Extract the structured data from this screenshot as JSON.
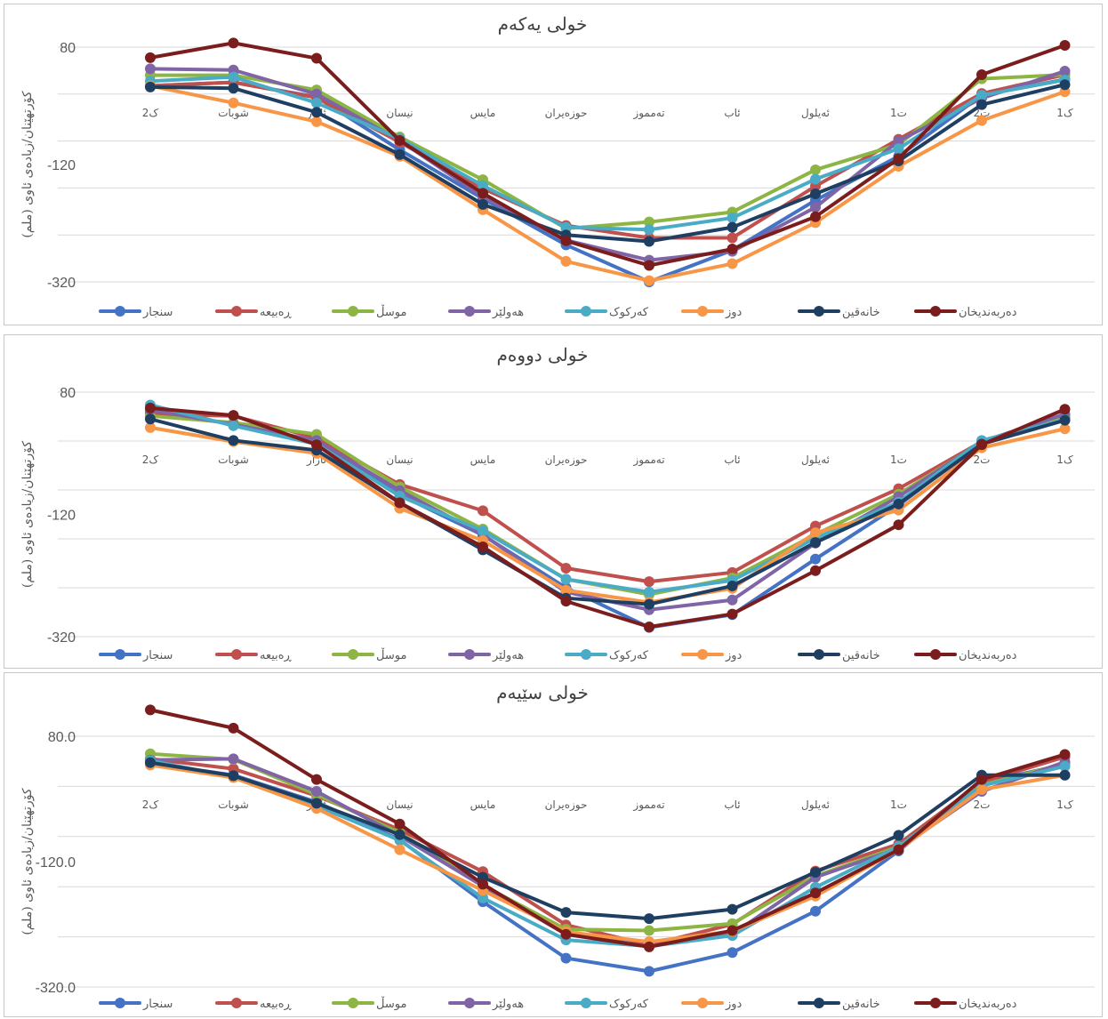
{
  "colors": {
    "series": [
      "#4472c4",
      "#c0504d",
      "#8db544",
      "#7f64a6",
      "#4aabc6",
      "#f79646",
      "#1f3f62",
      "#7b1d1d"
    ],
    "axis": "#595959",
    "grid": "#d9d9d9",
    "title": "#404040"
  },
  "ylabel": "کۆرتهێنان/زیادەی ئاوی (ملم)",
  "months": [
    "ک2",
    "شوبات",
    "ئازار",
    "نیسان",
    "مایس",
    "حوزەیران",
    "تەمموز",
    "ئاب",
    "ئەیلول",
    "ت1",
    "ت2",
    "ک1"
  ],
  "legend": [
    "سنجار",
    "ڕەبیعە",
    "موسڵ",
    "هەولێر",
    "کەرکوک",
    "دوز",
    "خانەقین",
    "دەربەندیخان"
  ],
  "chart_data": [
    {
      "type": "line",
      "title": "خولی یەکەم",
      "y_ticks": [
        "80",
        "-120",
        "-320"
      ],
      "ylim": [
        -320,
        80
      ],
      "series": [
        {
          "name": "سنجار",
          "values": [
            14,
            20,
            -5,
            -95,
            -178,
            -257,
            -320,
            -266,
            -181,
            -106,
            -2,
            25
          ]
        },
        {
          "name": "ڕەبیعە",
          "values": [
            14,
            20,
            -6,
            -82,
            -161,
            -224,
            -245,
            -245,
            -157,
            -77,
            1,
            33
          ]
        },
        {
          "name": "موسڵ",
          "values": [
            32,
            32,
            7,
            -73,
            -146,
            -229,
            -218,
            -201,
            -129,
            -86,
            26,
            33
          ]
        },
        {
          "name": "هەولێر",
          "values": [
            43,
            41,
            0,
            -79,
            -175,
            -249,
            -283,
            -268,
            -193,
            -80,
            -7,
            39
          ]
        },
        {
          "name": "کەرکوک",
          "values": [
            22,
            29,
            -15,
            -76,
            -156,
            -227,
            -231,
            -211,
            -145,
            -93,
            -2,
            24
          ]
        },
        {
          "name": "دوز",
          "values": [
            14,
            -15,
            -47,
            -106,
            -197,
            -285,
            -318,
            -289,
            -219,
            -123,
            -45,
            4
          ]
        },
        {
          "name": "خانەقین",
          "values": [
            12,
            10,
            -31,
            -103,
            -188,
            -240,
            -251,
            -227,
            -170,
            -114,
            -18,
            16
          ]
        },
        {
          "name": "دەربەندیخان",
          "values": [
            62,
            87,
            61,
            -79,
            -169,
            -250,
            -292,
            -264,
            -209,
            -110,
            33,
            83
          ]
        }
      ]
    },
    {
      "type": "line",
      "title": "خولی دووەم",
      "y_ticks": [
        "80",
        "-120",
        "-320"
      ],
      "ylim": [
        -320,
        80
      ],
      "series": [
        {
          "name": "سنجار",
          "values": [
            47,
            28,
            -4,
            -88,
            -154,
            -240,
            -305,
            -284,
            -193,
            -105,
            -2,
            39
          ]
        },
        {
          "name": "ڕەبیعە",
          "values": [
            44,
            41,
            5,
            -71,
            -114,
            -208,
            -230,
            -215,
            -139,
            -78,
            -1,
            41
          ]
        },
        {
          "name": "موسڵ",
          "values": [
            41,
            30,
            11,
            -75,
            -144,
            -226,
            -251,
            -224,
            -153,
            -87,
            -2,
            41
          ]
        },
        {
          "name": "هەولێر",
          "values": [
            51,
            27,
            1,
            -81,
            -153,
            -247,
            -276,
            -260,
            -167,
            -91,
            -1,
            44
          ]
        },
        {
          "name": "کەرکوک",
          "values": [
            59,
            25,
            -5,
            -90,
            -147,
            -226,
            -247,
            -228,
            -159,
            -100,
            1,
            35
          ]
        },
        {
          "name": "دوز",
          "values": [
            22,
            -1,
            -20,
            -110,
            -163,
            -244,
            -264,
            -241,
            -150,
            -113,
            -11,
            20
          ]
        },
        {
          "name": "خانەقین",
          "values": [
            36,
            1,
            -15,
            -101,
            -178,
            -257,
            -267,
            -237,
            -166,
            -103,
            -5,
            34
          ]
        },
        {
          "name": "دەربەندیخان",
          "values": [
            54,
            42,
            -6,
            -101,
            -173,
            -262,
            -304,
            -283,
            -212,
            -137,
            -6,
            52
          ]
        }
      ]
    },
    {
      "type": "line",
      "title": "خولی سێیەم",
      "y_ticks": [
        "80.0",
        "-120.0",
        "-320.0"
      ],
      "ylim": [
        -320,
        80
      ],
      "series": [
        {
          "name": "سنجار",
          "values": [
            37,
            18,
            -25,
            -85,
            -184,
            -274,
            -295,
            -265,
            -199,
            -103,
            6,
            35
          ]
        },
        {
          "name": "ڕەبیعە",
          "values": [
            44,
            28,
            -15,
            -69,
            -136,
            -221,
            -253,
            -220,
            -135,
            -92,
            7,
            47
          ]
        },
        {
          "name": "موسڵ",
          "values": [
            52,
            43,
            -13,
            -74,
            -158,
            -228,
            -230,
            -219,
            -143,
            -96,
            2,
            36
          ]
        },
        {
          "name": "هەولێر",
          "values": [
            42,
            44,
            -8,
            -79,
            -159,
            -236,
            -248,
            -236,
            -145,
            -99,
            -8,
            39
          ]
        },
        {
          "name": "کەرکوک",
          "values": [
            41,
            15,
            -31,
            -86,
            -178,
            -245,
            -255,
            -238,
            -161,
            -96,
            1,
            32
          ]
        },
        {
          "name": "دوز",
          "values": [
            34,
            14,
            -35,
            -101,
            -166,
            -232,
            -248,
            -231,
            -175,
            -101,
            -5,
            18
          ]
        },
        {
          "name": "خانەقین",
          "values": [
            38,
            17,
            -27,
            -77,
            -145,
            -201,
            -211,
            -196,
            -137,
            -78,
            18,
            18
          ]
        },
        {
          "name": "دەربەندیخان",
          "values": [
            122,
            93,
            11,
            -60,
            -156,
            -236,
            -256,
            -230,
            -170,
            -101,
            11,
            51
          ]
        }
      ]
    }
  ]
}
